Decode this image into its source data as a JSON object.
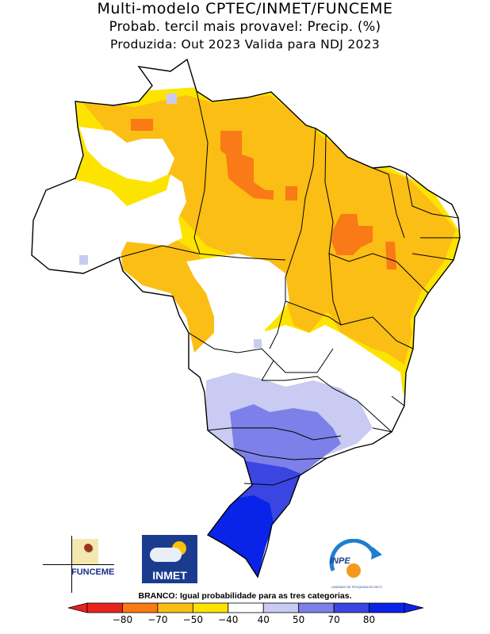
{
  "header": {
    "line1": "Multi-modelo CPTEC/INMET/FUNCEME",
    "line2": "Probab. tercil mais provavel: Precip. (%)",
    "line3": "Produzida: Out 2023  Valida para NDJ 2023"
  },
  "logos": {
    "funceme": "FUNCEME",
    "inmet": "INMET",
    "inpe": "INPE",
    "inpe_tagline": "UNIDADE DE PESQUISA DO MCTI"
  },
  "note": "BRANCO: Igual probabilidade para as tres categorias.",
  "colorbar": {
    "labels": [
      "−80",
      "−70",
      "−50",
      "−40",
      "40",
      "50",
      "70",
      "80"
    ],
    "colors": [
      "#e8231c",
      "#f97a17",
      "#fbbe14",
      "#fde400",
      "#ffffff",
      "#c9cbf2",
      "#7c80e8",
      "#3a45e2",
      "#0a23e8"
    ]
  },
  "map": {
    "region": "Brasil",
    "categories": [
      {
        "key": "ab70",
        "value": -70,
        "color": "#f97a17"
      },
      {
        "key": "ab50",
        "value": -50,
        "color": "#fbbe14"
      },
      {
        "key": "ab40",
        "value": -40,
        "color": "#fde400"
      },
      {
        "key": "neutral",
        "value": 0,
        "color": "#ffffff"
      },
      {
        "key": "ac40",
        "value": 40,
        "color": "#c9cbf2"
      },
      {
        "key": "ac50",
        "value": 50,
        "color": "#7c80e8"
      },
      {
        "key": "ac70",
        "value": 70,
        "color": "#3a45e2"
      },
      {
        "key": "ac80",
        "value": 80,
        "color": "#0a23e8"
      }
    ]
  }
}
